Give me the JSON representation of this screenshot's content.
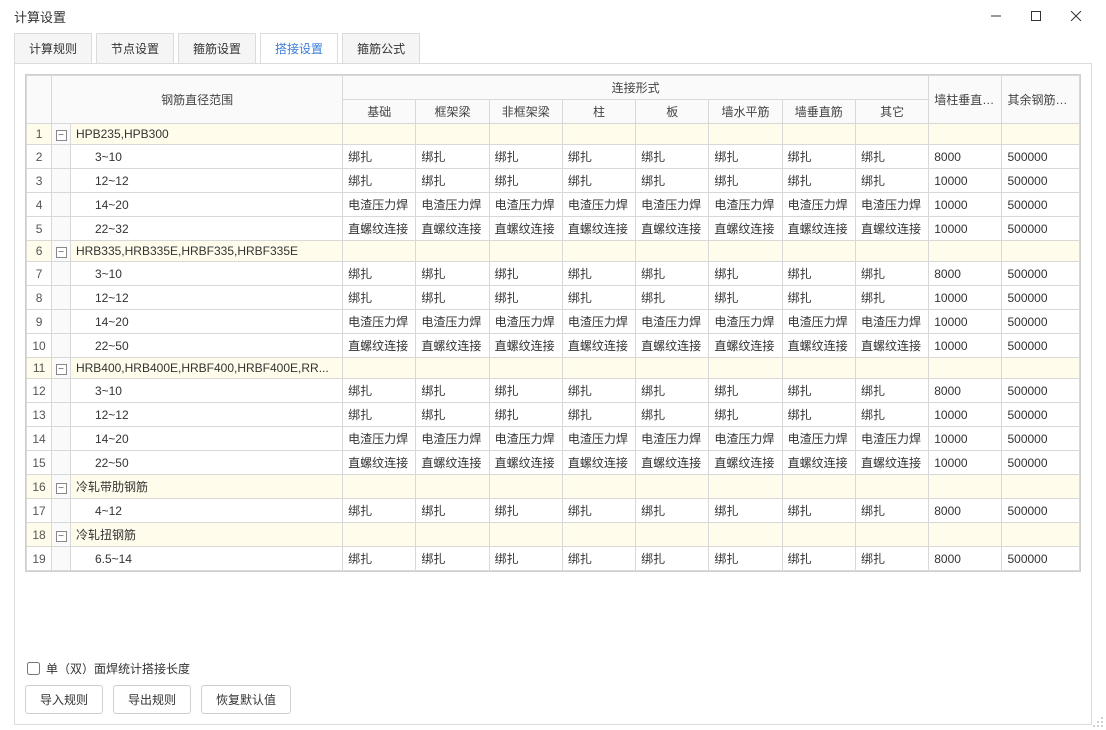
{
  "window": {
    "title": "计算设置"
  },
  "tabs": [
    "计算规则",
    "节点设置",
    "箍筋设置",
    "搭接设置",
    "箍筋公式"
  ],
  "active_tab_index": 3,
  "table": {
    "group_header_col": "钢筋直径范围",
    "spanning_header": "连接形式",
    "conn_headers": [
      "基础",
      "框架梁",
      "非框架梁",
      "柱",
      "板",
      "墙水平筋",
      "墙垂直筋",
      "其它"
    ],
    "fixed_headers": [
      "墙柱垂直筋定尺",
      "其余钢筋定尺"
    ],
    "rows": [
      {
        "n": 1,
        "type": "group",
        "label": "HPB235,HPB300"
      },
      {
        "n": 2,
        "type": "data",
        "range": "3~10",
        "conn": [
          "绑扎",
          "绑扎",
          "绑扎",
          "绑扎",
          "绑扎",
          "绑扎",
          "绑扎",
          "绑扎"
        ],
        "f1": "8000",
        "f2": "500000"
      },
      {
        "n": 3,
        "type": "data",
        "range": "12~12",
        "conn": [
          "绑扎",
          "绑扎",
          "绑扎",
          "绑扎",
          "绑扎",
          "绑扎",
          "绑扎",
          "绑扎"
        ],
        "f1": "10000",
        "f2": "500000"
      },
      {
        "n": 4,
        "type": "data",
        "range": "14~20",
        "conn": [
          "电渣压力焊",
          "电渣压力焊",
          "电渣压力焊",
          "电渣压力焊",
          "电渣压力焊",
          "电渣压力焊",
          "电渣压力焊",
          "电渣压力焊"
        ],
        "f1": "10000",
        "f2": "500000"
      },
      {
        "n": 5,
        "type": "data",
        "range": "22~32",
        "conn": [
          "直螺纹连接",
          "直螺纹连接",
          "直螺纹连接",
          "直螺纹连接",
          "直螺纹连接",
          "直螺纹连接",
          "直螺纹连接",
          "直螺纹连接"
        ],
        "f1": "10000",
        "f2": "500000"
      },
      {
        "n": 6,
        "type": "group",
        "label": "HRB335,HRB335E,HRBF335,HRBF335E"
      },
      {
        "n": 7,
        "type": "data",
        "range": "3~10",
        "conn": [
          "绑扎",
          "绑扎",
          "绑扎",
          "绑扎",
          "绑扎",
          "绑扎",
          "绑扎",
          "绑扎"
        ],
        "f1": "8000",
        "f2": "500000"
      },
      {
        "n": 8,
        "type": "data",
        "range": "12~12",
        "conn": [
          "绑扎",
          "绑扎",
          "绑扎",
          "绑扎",
          "绑扎",
          "绑扎",
          "绑扎",
          "绑扎"
        ],
        "f1": "10000",
        "f2": "500000"
      },
      {
        "n": 9,
        "type": "data",
        "range": "14~20",
        "conn": [
          "电渣压力焊",
          "电渣压力焊",
          "电渣压力焊",
          "电渣压力焊",
          "电渣压力焊",
          "电渣压力焊",
          "电渣压力焊",
          "电渣压力焊"
        ],
        "f1": "10000",
        "f2": "500000"
      },
      {
        "n": 10,
        "type": "data",
        "range": "22~50",
        "conn": [
          "直螺纹连接",
          "直螺纹连接",
          "直螺纹连接",
          "直螺纹连接",
          "直螺纹连接",
          "直螺纹连接",
          "直螺纹连接",
          "直螺纹连接"
        ],
        "f1": "10000",
        "f2": "500000"
      },
      {
        "n": 11,
        "type": "group",
        "label": "HRB400,HRB400E,HRBF400,HRBF400E,RR..."
      },
      {
        "n": 12,
        "type": "data",
        "range": "3~10",
        "conn": [
          "绑扎",
          "绑扎",
          "绑扎",
          "绑扎",
          "绑扎",
          "绑扎",
          "绑扎",
          "绑扎"
        ],
        "f1": "8000",
        "f2": "500000"
      },
      {
        "n": 13,
        "type": "data",
        "range": "12~12",
        "conn": [
          "绑扎",
          "绑扎",
          "绑扎",
          "绑扎",
          "绑扎",
          "绑扎",
          "绑扎",
          "绑扎"
        ],
        "f1": "10000",
        "f2": "500000"
      },
      {
        "n": 14,
        "type": "data",
        "range": "14~20",
        "conn": [
          "电渣压力焊",
          "电渣压力焊",
          "电渣压力焊",
          "电渣压力焊",
          "电渣压力焊",
          "电渣压力焊",
          "电渣压力焊",
          "电渣压力焊"
        ],
        "f1": "10000",
        "f2": "500000"
      },
      {
        "n": 15,
        "type": "data",
        "range": "22~50",
        "conn": [
          "直螺纹连接",
          "直螺纹连接",
          "直螺纹连接",
          "直螺纹连接",
          "直螺纹连接",
          "直螺纹连接",
          "直螺纹连接",
          "直螺纹连接"
        ],
        "f1": "10000",
        "f2": "500000"
      },
      {
        "n": 16,
        "type": "group",
        "label": "冷轧带肋钢筋"
      },
      {
        "n": 17,
        "type": "data",
        "range": "4~12",
        "conn": [
          "绑扎",
          "绑扎",
          "绑扎",
          "绑扎",
          "绑扎",
          "绑扎",
          "绑扎",
          "绑扎"
        ],
        "f1": "8000",
        "f2": "500000"
      },
      {
        "n": 18,
        "type": "group",
        "label": "冷轧扭钢筋"
      },
      {
        "n": 19,
        "type": "data",
        "range": "6.5~14",
        "conn": [
          "绑扎",
          "绑扎",
          "绑扎",
          "绑扎",
          "绑扎",
          "绑扎",
          "绑扎",
          "绑扎"
        ],
        "f1": "8000",
        "f2": "500000"
      }
    ]
  },
  "checkbox_label": "单（双）面焊统计搭接长度",
  "buttons": {
    "import": "导入规则",
    "export": "导出规则",
    "restore": "恢复默认值"
  },
  "colors": {
    "border": "#cfcfcf",
    "group_bg": "#fffceb",
    "header_bg": "#fafafa",
    "active_tab": "#3b7dd8",
    "text": "#333333"
  }
}
